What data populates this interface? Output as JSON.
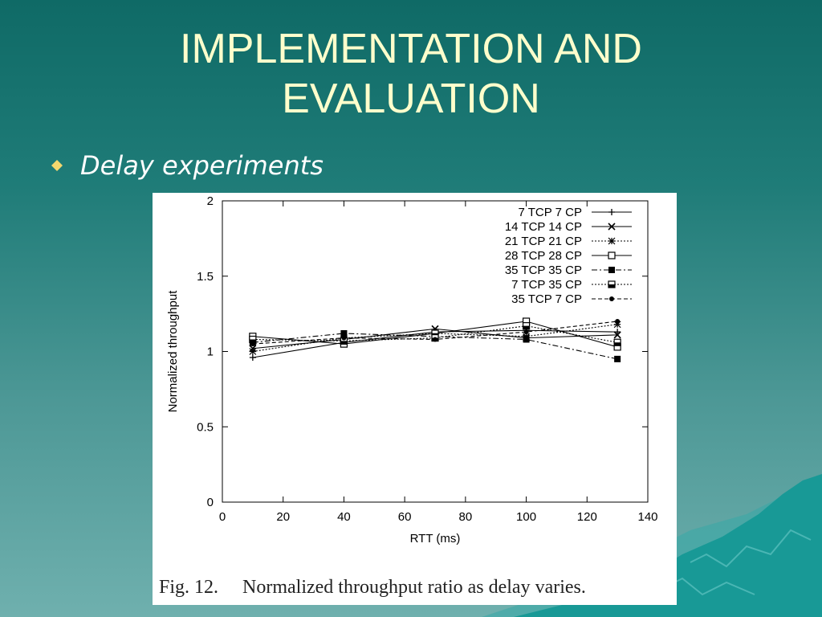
{
  "slide": {
    "title_line1": "IMPLEMENTATION AND",
    "title_line2": "EVALUATION",
    "bullet": "Delay experiments",
    "caption_label": "Fig. 12.",
    "caption_text": "Normalized throughput ratio as delay varies.",
    "colors": {
      "title": "#ffffcc",
      "bullet_icon": "#f5d76e",
      "background_top": "#0f6a66",
      "background_bottom": "#6fb0ae",
      "mountains": "#1c9c9a"
    }
  },
  "chart_data": {
    "type": "line",
    "title": "",
    "xlabel": "RTT (ms)",
    "ylabel": "Normalized throughput",
    "xlim": [
      0,
      140
    ],
    "ylim": [
      0,
      2
    ],
    "xticks": [
      0,
      20,
      40,
      60,
      80,
      100,
      120,
      140
    ],
    "yticks": [
      0,
      0.5,
      1,
      1.5,
      2
    ],
    "xtick_labels": [
      "0",
      "20",
      "40",
      "60",
      "80",
      "100",
      "120",
      "140"
    ],
    "ytick_labels": [
      "0",
      "0.5",
      "1",
      "1.5",
      "2"
    ],
    "grid": false,
    "legend_position": "top-right",
    "x": [
      10,
      40,
      70,
      100,
      130
    ],
    "series": [
      {
        "name": "7 TCP 7 CP",
        "marker": "plus",
        "dash": "solid",
        "values": [
          0.96,
          1.06,
          1.13,
          1.14,
          1.13
        ]
      },
      {
        "name": "14 TCP 14 CP",
        "marker": "cross",
        "dash": "solid",
        "values": [
          1.02,
          1.08,
          1.15,
          1.09,
          1.11
        ]
      },
      {
        "name": "21 TCP 21 CP",
        "marker": "asterisk",
        "dash": "dotted",
        "values": [
          1.0,
          1.09,
          1.12,
          1.1,
          1.18
        ]
      },
      {
        "name": "28 TCP 28 CP",
        "marker": "square-open",
        "dash": "solid",
        "values": [
          1.1,
          1.05,
          1.12,
          1.2,
          1.03
        ]
      },
      {
        "name": "35 TCP 35 CP",
        "marker": "square-filled",
        "dash": "dashdot",
        "values": [
          1.06,
          1.12,
          1.1,
          1.08,
          0.95
        ]
      },
      {
        "name": "7 TCP 35 CP",
        "marker": "square-half",
        "dash": "dotted",
        "values": [
          1.08,
          1.07,
          1.09,
          1.17,
          1.06
        ]
      },
      {
        "name": "35 TCP 7 CP",
        "marker": "circle-filled",
        "dash": "dashed",
        "values": [
          1.05,
          1.09,
          1.08,
          1.13,
          1.2
        ]
      }
    ]
  }
}
